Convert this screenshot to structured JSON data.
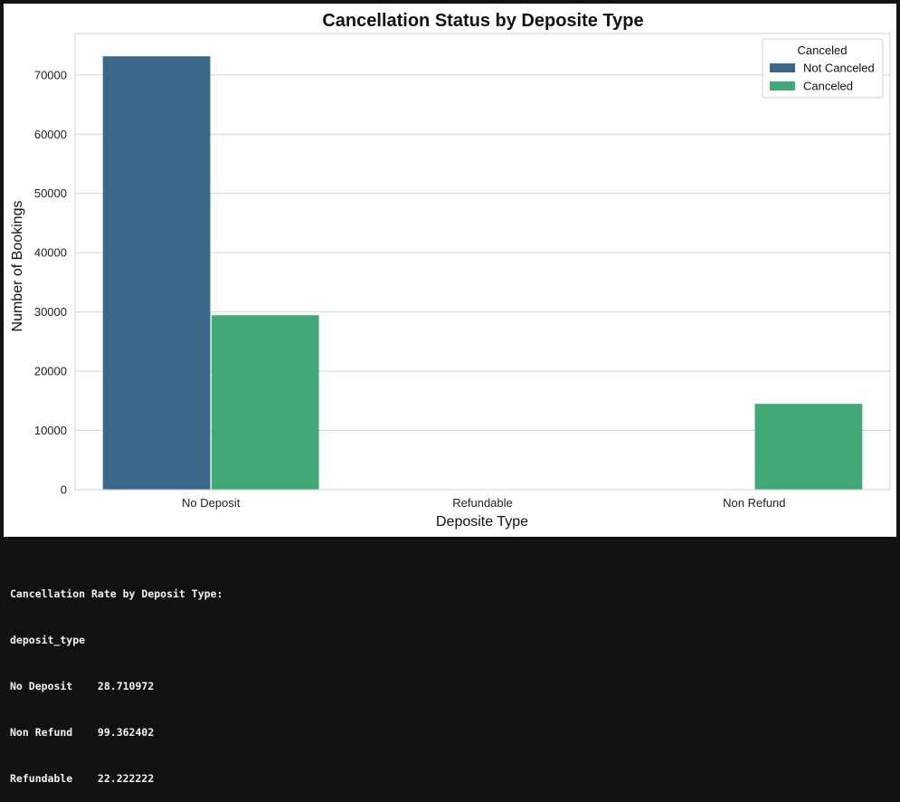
{
  "chart_data": {
    "type": "bar",
    "title": "Cancellation Status by Deposite Type",
    "xlabel": "Deposite Type",
    "ylabel": "Number of Bookings",
    "categories": [
      "No Deposit",
      "Refundable",
      "Non Refund"
    ],
    "series": [
      {
        "name": "Not Canceled",
        "values": [
          73100,
          0,
          0
        ],
        "color": "#3b6788"
      },
      {
        "name": "Canceled",
        "values": [
          29400,
          0,
          14450
        ],
        "color": "#43a877"
      }
    ],
    "ylim": [
      0,
      77000
    ],
    "yticks": [
      0,
      10000,
      20000,
      30000,
      40000,
      50000,
      60000,
      70000
    ],
    "grid": true,
    "legend": {
      "title": "Canceled",
      "placement": "top-right"
    }
  },
  "console": {
    "heading": "Cancellation Rate by Deposit Type:",
    "index_name": "deposit_type",
    "rows": [
      "No Deposit    28.710972",
      "Non Refund    99.362402",
      "Refundable    22.222222"
    ]
  }
}
